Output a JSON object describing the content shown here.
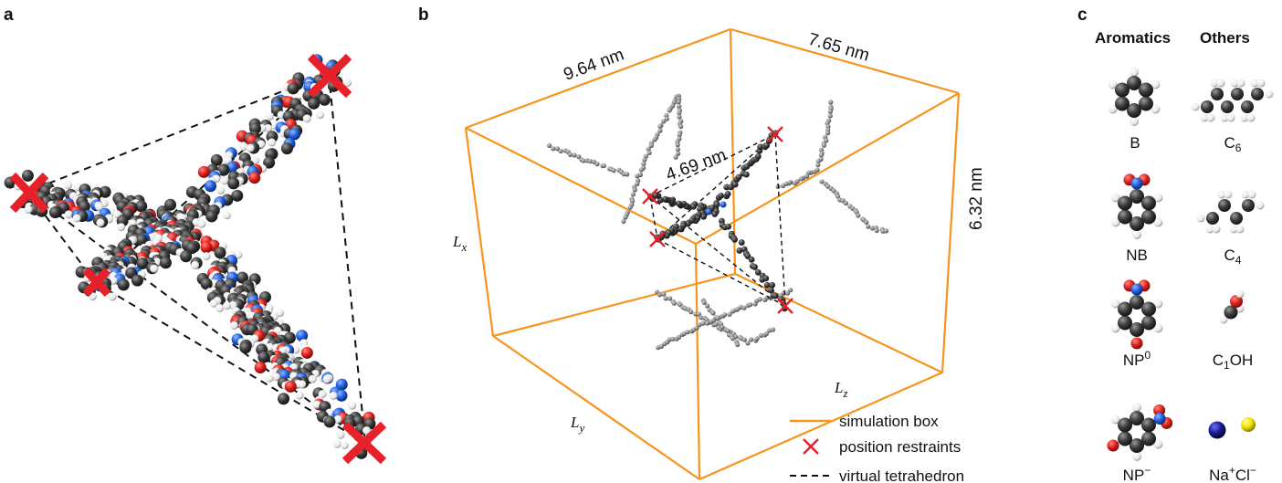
{
  "panels": {
    "a": {
      "letter": "a"
    },
    "b": {
      "letter": "b",
      "dimensions": {
        "top_left": "9.64 nm",
        "top_right": "7.65 nm",
        "right": "6.32 nm",
        "inner": "4.69 nm"
      },
      "axes": {
        "lx": "L",
        "lx_sub": "x",
        "ly": "L",
        "ly_sub": "y",
        "lz": "L",
        "lz_sub": "z"
      },
      "legend": {
        "box": "simulation box",
        "restraints": "position restraints",
        "tetrahedron": "virtual tetrahedron"
      },
      "colors": {
        "box": "#F7941D",
        "restraint": "#E8202A"
      }
    },
    "c": {
      "letter": "c",
      "col_aromatics": "Aromatics",
      "col_others": "Others",
      "molecules": {
        "b": "B",
        "c6": "C",
        "c6_sub": "6",
        "nb": "NB",
        "c4": "C",
        "c4_sub": "4",
        "np0": "NP",
        "np0_sup": "0",
        "c1oh_c": "C",
        "c1oh_sub": "1",
        "c1oh_oh": "OH",
        "npm": "NP",
        "npm_sup": "−",
        "na": "Na",
        "na_sup": "+",
        "cl": "Cl",
        "cl_sup": "−"
      },
      "colors": {
        "carbon": "#404040",
        "hydrogen": "#f4f4f4",
        "oxygen": "#e0201c",
        "nitrogen": "#1f5fe0",
        "sodium": "#1a1a8a",
        "chloride": "#f2e400"
      }
    }
  }
}
